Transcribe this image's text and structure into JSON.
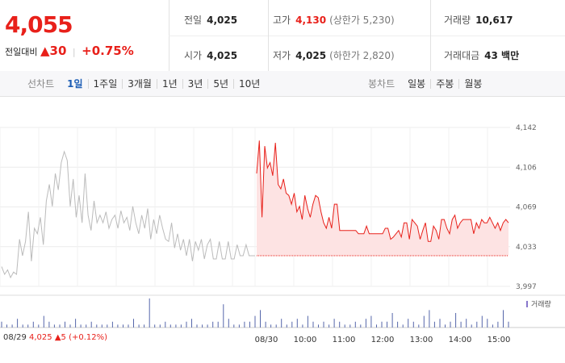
{
  "header": {
    "price": "4,055",
    "change_label": "전일대비",
    "change_value": "30",
    "change_pct": "+0.75%"
  },
  "stats": {
    "prev_close": {
      "label": "전일",
      "value": "4,025"
    },
    "open": {
      "label": "시가",
      "value": "4,025"
    },
    "high": {
      "label": "고가",
      "value": "4,130",
      "sub": "(상한가 5,230)"
    },
    "low": {
      "label": "저가",
      "value": "4,025",
      "sub": "(하한가 2,820)"
    },
    "volume": {
      "label": "거래량",
      "value": "10,617"
    },
    "amount": {
      "label": "거래대금",
      "value": "43 백만"
    }
  },
  "tabs": {
    "line_label": "선차트",
    "line_items": [
      "1일",
      "1주일",
      "3개월",
      "1년",
      "3년",
      "5년",
      "10년"
    ],
    "active_index": 0,
    "candle_label": "봉차트",
    "candle_items": [
      "일봉",
      "주봉",
      "월봉"
    ]
  },
  "footer": {
    "prev_date": "08/29",
    "prev_price": "4,025",
    "prev_change": "5",
    "prev_pct": "(+0.12%)"
  },
  "colors": {
    "up": "#e8201a",
    "prev_line": "#bbbbbb",
    "fill": "#fde3e3",
    "volume_bar": "#5566aa"
  },
  "chart_data": {
    "type": "line",
    "ylim": [
      3997,
      4142
    ],
    "yticks": [
      "4,142",
      "4,106",
      "4,069",
      "4,033",
      "3,997"
    ],
    "xticks": [
      "08/29",
      "08/30",
      "10:00",
      "11:00",
      "12:00",
      "13:00",
      "14:00",
      "15:00"
    ],
    "volume_legend": "거래량",
    "reference_price": 4025,
    "series": [
      {
        "values": [
          4015,
          4008,
          4012,
          4005,
          4010,
          4008,
          4040,
          4025,
          4038,
          4065,
          4020,
          4050,
          4045,
          4060,
          4035,
          4075,
          4090,
          4070,
          4100,
          4085,
          4110,
          4120,
          4112,
          4070,
          4095,
          4060,
          4080,
          4055,
          4100,
          4062,
          4048,
          4075,
          4055,
          4062,
          4055,
          4065,
          4050,
          4058,
          4062,
          4050,
          4066,
          4055,
          4060,
          4048,
          4070,
          4055,
          4045,
          4062,
          4050,
          4068,
          4040,
          4058,
          4045,
          4062,
          4050,
          4040,
          4038,
          4055,
          4032,
          4045,
          4030,
          4040,
          4025,
          4040,
          4020,
          4038,
          4030,
          4040,
          4022,
          4035,
          4040,
          4022,
          4022,
          4038,
          4022,
          4022,
          4038,
          4022,
          4022,
          4035,
          4025,
          4025,
          4035,
          4025,
          4025,
          4025
        ]
      },
      {
        "values": [
          4100,
          4130,
          4060,
          4125,
          4105,
          4110,
          4098,
          4128,
          4090,
          4086,
          4095,
          4082,
          4080,
          4072,
          4082,
          4065,
          4070,
          4058,
          4080,
          4068,
          4060,
          4072,
          4080,
          4078,
          4065,
          4055,
          4050,
          4060,
          4050,
          4072,
          4072,
          4048,
          4048,
          4048,
          4048,
          4048,
          4048,
          4048,
          4045,
          4045,
          4045,
          4052,
          4045,
          4045,
          4045,
          4045,
          4045,
          4045,
          4050,
          4050,
          4040,
          4042,
          4045,
          4048,
          4042,
          4055,
          4055,
          4040,
          4058,
          4055,
          4052,
          4040,
          4048,
          4055,
          4038,
          4038,
          4052,
          4048,
          4040,
          4058,
          4058,
          4050,
          4045,
          4058,
          4062,
          4050,
          4055,
          4058,
          4058,
          4058,
          4058,
          4045,
          4055,
          4050,
          4058,
          4055,
          4055,
          4060,
          4055,
          4050,
          4055,
          4048,
          4055,
          4058,
          4055
        ]
      }
    ],
    "volume": [
      2,
      1,
      1,
      3,
      1,
      1,
      2,
      1,
      4,
      2,
      1,
      1,
      2,
      1,
      3,
      1,
      1,
      2,
      1,
      1,
      1,
      2,
      1,
      1,
      1,
      3,
      1,
      1,
      10,
      1,
      1,
      2,
      1,
      1,
      1,
      2,
      3,
      1,
      1,
      1,
      2,
      2,
      8,
      3,
      1,
      1,
      2,
      2,
      4,
      6,
      2,
      1,
      1,
      3,
      1,
      2,
      3,
      1,
      4,
      2,
      1,
      2,
      1,
      3,
      2,
      1,
      1,
      2,
      1,
      3,
      4,
      1,
      2,
      2,
      5,
      2,
      1,
      3,
      2,
      1,
      4,
      6,
      2,
      3,
      1,
      2,
      5,
      2,
      3,
      1,
      2,
      4,
      3,
      1,
      2,
      6,
      2
    ]
  }
}
